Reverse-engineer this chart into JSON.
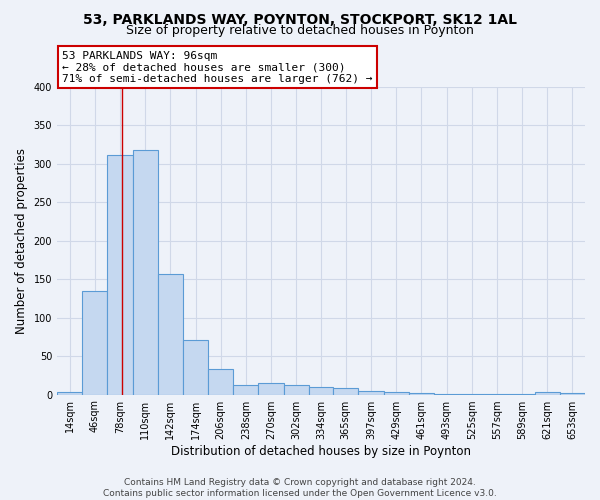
{
  "title": "53, PARKLANDS WAY, POYNTON, STOCKPORT, SK12 1AL",
  "subtitle": "Size of property relative to detached houses in Poynton",
  "xlabel": "Distribution of detached houses by size in Poynton",
  "ylabel": "Number of detached properties",
  "footer_line1": "Contains HM Land Registry data © Crown copyright and database right 2024.",
  "footer_line2": "Contains public sector information licensed under the Open Government Licence v3.0.",
  "bin_labels": [
    "14sqm",
    "46sqm",
    "78sqm",
    "110sqm",
    "142sqm",
    "174sqm",
    "206sqm",
    "238sqm",
    "270sqm",
    "302sqm",
    "334sqm",
    "365sqm",
    "397sqm",
    "429sqm",
    "461sqm",
    "493sqm",
    "525sqm",
    "557sqm",
    "589sqm",
    "621sqm",
    "653sqm"
  ],
  "bar_heights": [
    3,
    135,
    311,
    318,
    157,
    71,
    33,
    12,
    15,
    12,
    10,
    8,
    5,
    3,
    2,
    1,
    1,
    1,
    1,
    3,
    2
  ],
  "bar_color": "#c5d8f0",
  "bar_edge_color": "#5b9bd5",
  "bg_color": "#eef2f9",
  "grid_color": "#d0d8e8",
  "red_line_x": 96,
  "bin_edges": [
    14,
    46,
    78,
    110,
    142,
    174,
    206,
    238,
    270,
    302,
    334,
    365,
    397,
    429,
    461,
    493,
    525,
    557,
    589,
    621,
    653,
    685
  ],
  "annotation_line1": "53 PARKLANDS WAY: 96sqm",
  "annotation_line2": "← 28% of detached houses are smaller (300)",
  "annotation_line3": "71% of semi-detached houses are larger (762) →",
  "ylim": [
    0,
    400
  ],
  "yticks": [
    0,
    50,
    100,
    150,
    200,
    250,
    300,
    350,
    400
  ],
  "title_fontsize": 10,
  "subtitle_fontsize": 9,
  "axis_label_fontsize": 8.5,
  "tick_fontsize": 7,
  "annot_fontsize": 8,
  "footer_fontsize": 6.5
}
